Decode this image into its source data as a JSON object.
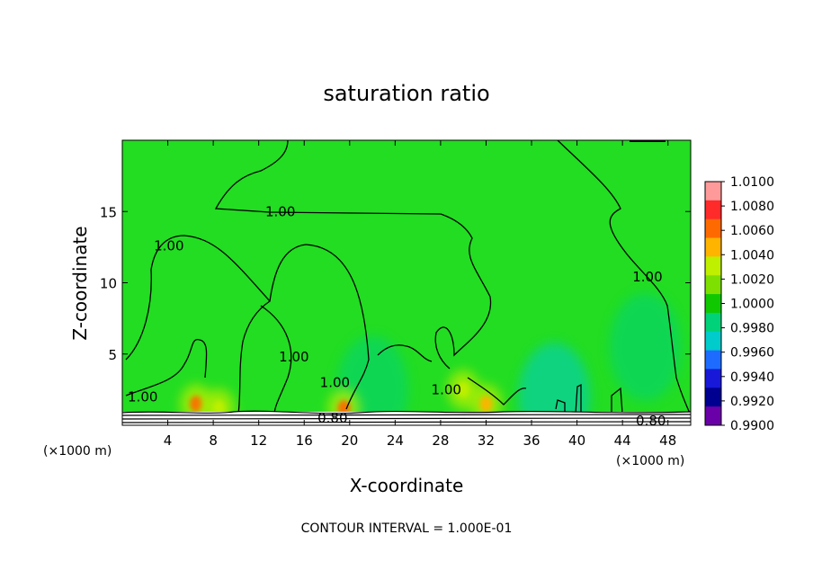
{
  "chart_data": {
    "type": "heatmap",
    "title": "saturation ratio",
    "xlabel": "X-coordinate",
    "ylabel": "Z-coordinate",
    "x_unit_left": "(×1000 m)",
    "x_unit_right": "(×1000 m)",
    "footer": "CONTOUR INTERVAL = 1.000E-01",
    "xlim": [
      0,
      50
    ],
    "ylim": [
      0,
      20
    ],
    "x_ticks": [
      4,
      8,
      12,
      16,
      20,
      24,
      28,
      32,
      36,
      40,
      44,
      48
    ],
    "y_ticks": [
      5,
      10,
      15
    ],
    "colorbar": {
      "labels": [
        "1.0100",
        "1.0080",
        "1.0060",
        "1.0040",
        "1.0020",
        "1.0000",
        "0.9980",
        "0.9960",
        "0.9940",
        "0.9920",
        "0.9900"
      ],
      "colors": [
        "#ff9a9a",
        "#ff2a2a",
        "#ff6a00",
        "#ffb400",
        "#bff000",
        "#7ee000",
        "#10c800",
        "#00d27a",
        "#00cccc",
        "#1e6cff",
        "#1818d8",
        "#000090",
        "#6a00a8"
      ]
    },
    "contour_labels": [
      {
        "text": "1.00",
        "x": 13.9,
        "z": 15.0
      },
      {
        "text": "1.00",
        "x": 4.1,
        "z": 12.6
      },
      {
        "text": "1.00",
        "x": 46.2,
        "z": 10.4
      },
      {
        "text": "1.00",
        "x": 15.1,
        "z": 4.8
      },
      {
        "text": "1.00",
        "x": 18.7,
        "z": 3.0
      },
      {
        "text": "1.00",
        "x": 28.5,
        "z": 2.5
      },
      {
        "text": "1.00",
        "x": 1.8,
        "z": 2.0
      },
      {
        "text": "0.80",
        "x": 18.5,
        "z": 0.5
      },
      {
        "text": "0.80",
        "x": 46.5,
        "z": 0.3
      }
    ],
    "background_value": 1.0,
    "warm_spots": [
      {
        "x": 6.5,
        "z": 1.5,
        "value": 1.006
      },
      {
        "x": 8.5,
        "z": 1.2,
        "value": 1.004
      },
      {
        "x": 19.5,
        "z": 1.2,
        "value": 1.006
      },
      {
        "x": 30.0,
        "z": 2.5,
        "value": 1.003
      },
      {
        "x": 32.0,
        "z": 1.5,
        "value": 1.005
      }
    ],
    "cool_regions": [
      {
        "x": 46.0,
        "z": 5.5,
        "value": 0.998
      },
      {
        "x": 22.0,
        "z": 2.5,
        "value": 0.998
      },
      {
        "x": 38.0,
        "z": 2.0,
        "value": 0.997
      }
    ]
  }
}
